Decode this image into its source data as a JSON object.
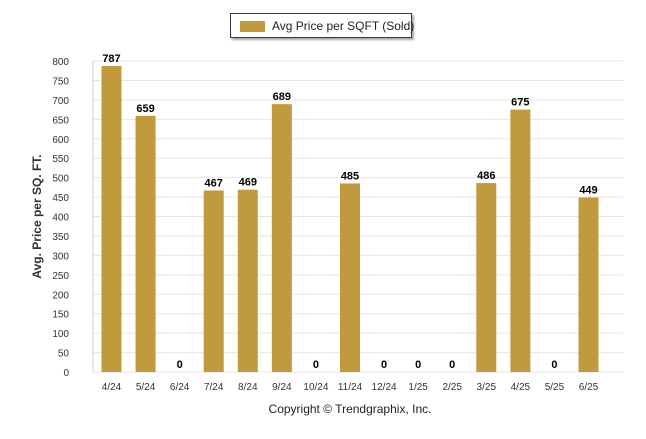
{
  "legend": {
    "label": "Avg Price per SQFT (Sold)"
  },
  "footer": {
    "copyright": "Copyright © Trendgraphix, Inc."
  },
  "colors": {
    "bar": "#C09A3C",
    "grid": "#e6e6e6",
    "axis_text": "#333333",
    "value_text": "#000000"
  },
  "chart_data": {
    "type": "bar",
    "categories": [
      "4/24",
      "5/24",
      "6/24",
      "7/24",
      "8/24",
      "9/24",
      "10/24",
      "11/24",
      "12/24",
      "1/25",
      "2/25",
      "3/25",
      "4/25",
      "5/25",
      "6/25"
    ],
    "series": [
      {
        "name": "Avg Price per SQFT (Sold)",
        "values": [
          787,
          659,
          0,
          467,
          469,
          689,
          0,
          485,
          0,
          0,
          0,
          486,
          675,
          0,
          449
        ]
      }
    ],
    "data_labels": [
      "787",
      "659",
      "0",
      "467",
      "469",
      "689",
      "0",
      "485",
      "0",
      "0",
      "0",
      "486",
      "675",
      "0",
      "449"
    ],
    "y_ticks": [
      "0",
      "50",
      "100",
      "150",
      "200",
      "250",
      "300",
      "350",
      "400",
      "450",
      "500",
      "550",
      "600",
      "650",
      "700",
      "750",
      "800"
    ],
    "ylabel": "Avg. Price per SQ. FT.",
    "xlabel": "",
    "ylim": [
      0,
      800
    ],
    "grid": true,
    "legend_position": "top-center"
  }
}
